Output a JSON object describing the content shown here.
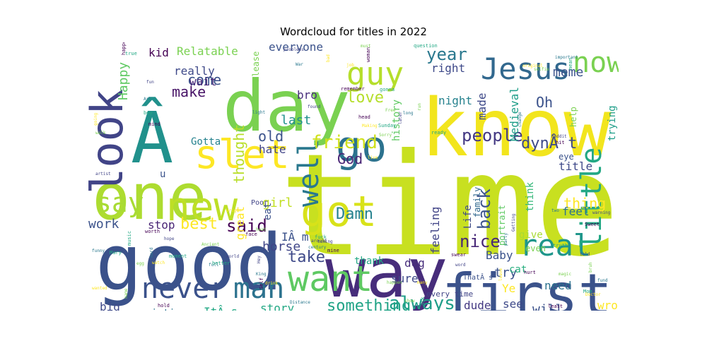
{
  "chart_data": {
    "type": "wordcloud",
    "title": "Wordcloud for titles in 2022",
    "colormap": [
      "#440154",
      "#414487",
      "#2a788e",
      "#22a884",
      "#7ad151",
      "#fde725"
    ],
    "words": [
      {
        "text": "time",
        "color": "#c8e020"
      },
      {
        "text": "know",
        "color": "#f2e51d"
      },
      {
        "text": "good",
        "color": "#3b528b"
      },
      {
        "text": "day",
        "color": "#7ad151"
      },
      {
        "text": "way",
        "color": "#472d7b"
      },
      {
        "text": "Â",
        "color": "#21918c"
      },
      {
        "text": "one",
        "color": "#addc30"
      },
      {
        "text": "first",
        "color": "#3b528b"
      },
      {
        "text": "look",
        "color": "#414487"
      },
      {
        "text": "slet",
        "color": "#fde725"
      },
      {
        "text": "go",
        "color": "#2c728e"
      },
      {
        "text": "got",
        "color": "#d8e219"
      },
      {
        "text": "new",
        "color": "#bddf26"
      },
      {
        "text": "Jesus",
        "color": "#31688e"
      },
      {
        "text": "now",
        "color": "#7ad151"
      },
      {
        "text": "guy",
        "color": "#b5de2b"
      },
      {
        "text": "want",
        "color": "#5ec962"
      },
      {
        "text": "never",
        "color": "#3b528b"
      },
      {
        "text": "man",
        "color": "#2c728e"
      },
      {
        "text": "real",
        "color": "#1f968b"
      },
      {
        "text": "well",
        "color": "#2a788e"
      },
      {
        "text": "little",
        "color": "#23a884"
      },
      {
        "text": "say",
        "color": "#a8db34"
      },
      {
        "text": "love",
        "color": "#b5de2b"
      },
      {
        "text": "friend",
        "color": "#d0e11c"
      },
      {
        "text": "people",
        "color": "#443983"
      },
      {
        "text": "year",
        "color": "#2a788e"
      },
      {
        "text": "dynÂ t",
        "color": "#3e4989"
      },
      {
        "text": "back",
        "color": "#3b528b"
      },
      {
        "text": "God",
        "color": "#482475"
      },
      {
        "text": "said",
        "color": "#440154"
      },
      {
        "text": "best",
        "color": "#fde725"
      },
      {
        "text": "nice",
        "color": "#482878"
      },
      {
        "text": "thing",
        "color": "#fde725"
      },
      {
        "text": "take",
        "color": "#3e4989"
      },
      {
        "text": "always",
        "color": "#1f9e89"
      },
      {
        "text": "something",
        "color": "#20a386"
      },
      {
        "text": "Damn",
        "color": "#26828e"
      },
      {
        "text": "thought",
        "color": "#b8de29"
      },
      {
        "text": "come",
        "color": "#3b528b"
      },
      {
        "text": "make",
        "color": "#481467"
      },
      {
        "text": "Oh",
        "color": "#3b528b"
      },
      {
        "text": "last",
        "color": "#21918c"
      },
      {
        "text": "old",
        "color": "#3b528b"
      },
      {
        "text": "kid",
        "color": "#440154"
      },
      {
        "text": "everyone",
        "color": "#3b528b"
      },
      {
        "text": "Relatable",
        "color": "#7ad151"
      },
      {
        "text": "Happy",
        "color": "#5ec962"
      },
      {
        "text": "really",
        "color": "#3e4989"
      },
      {
        "text": "wait",
        "color": "#482878"
      },
      {
        "text": "bro",
        "color": "#472d7b"
      },
      {
        "text": "hate",
        "color": "#414487"
      },
      {
        "text": "girl",
        "color": "#c2df23"
      },
      {
        "text": "horse",
        "color": "#404688"
      },
      {
        "text": "work",
        "color": "#3b528b"
      },
      {
        "text": "stop",
        "color": "#482475"
      },
      {
        "text": "ItÂ s",
        "color": "#22a884"
      },
      {
        "text": "story",
        "color": "#22a884"
      },
      {
        "text": "painting",
        "color": "#2c728e"
      },
      {
        "text": "big",
        "color": "#3e4989"
      },
      {
        "text": "dude",
        "color": "#443983"
      },
      {
        "text": "see",
        "color": "#3e4989"
      },
      {
        "text": "will",
        "color": "#3b528b"
      },
      {
        "text": "wrong",
        "color": "#fde725"
      },
      {
        "text": "need",
        "color": "#2c728e"
      },
      {
        "text": "feel",
        "color": "#2c728e"
      },
      {
        "text": "meme",
        "color": "#3b528b"
      },
      {
        "text": "right",
        "color": "#3e4989"
      },
      {
        "text": "night",
        "color": "#26828e"
      },
      {
        "text": "made",
        "color": "#3e4989"
      },
      {
        "text": "Medieval",
        "color": "#1f9e89"
      },
      {
        "text": "history",
        "color": "#5ec962"
      },
      {
        "text": "feeling",
        "color": "#414487"
      },
      {
        "text": "Life",
        "color": "#3e4989"
      },
      {
        "text": "family",
        "color": "#31688e"
      },
      {
        "text": "think",
        "color": "#35b779"
      },
      {
        "text": "title",
        "color": "#3e4989"
      },
      {
        "text": "Baby",
        "color": "#3b528b"
      },
      {
        "text": "try",
        "color": "#3b528b"
      },
      {
        "text": "Ye",
        "color": "#fde725"
      },
      {
        "text": "cat",
        "color": "#29af7f"
      },
      {
        "text": "sure",
        "color": "#3e4989"
      },
      {
        "text": "dog",
        "color": "#472d7b"
      },
      {
        "text": "thank",
        "color": "#22a884"
      },
      {
        "text": "IÂ m",
        "color": "#3b528b"
      },
      {
        "text": "eat",
        "color": "#3b528b"
      },
      {
        "text": "Gotta",
        "color": "#26828e"
      },
      {
        "text": "u",
        "color": "#3b528b"
      },
      {
        "text": "great",
        "color": "#fde725"
      },
      {
        "text": "trying",
        "color": "#1f9e89"
      },
      {
        "text": "help",
        "color": "#7ad151"
      },
      {
        "text": "give",
        "color": "#a8db34"
      },
      {
        "text": "even",
        "color": "#7ad151"
      },
      {
        "text": "portrait",
        "color": "#5ec962"
      },
      {
        "text": "every time",
        "color": "#414487"
      },
      {
        "text": "ThatÂ s",
        "color": "#3b528b"
      },
      {
        "text": "Please",
        "color": "#7ad151"
      },
      {
        "text": "eye",
        "color": "#3b528b"
      },
      {
        "text": "Poor",
        "color": "#414487"
      }
    ],
    "small_words": [
      "happened",
      "fun",
      "Art",
      "boy",
      "walk",
      "going",
      "mind",
      "artist",
      "funny",
      "Mary",
      "name",
      "wanted",
      "hold",
      "world",
      "full",
      "music",
      "egg",
      "watch",
      "worth",
      "hope",
      "hard",
      "moment",
      "Ancient",
      "origin",
      "face",
      "Hey",
      "King",
      "better",
      "heat",
      "drink",
      "Self",
      "around",
      "century",
      "fuck",
      "show",
      "leave",
      "hurt",
      "told",
      "fund",
      "Mom",
      "bruh",
      "Science",
      "Sweet",
      "warning",
      "important",
      "mean",
      "selfie",
      "original",
      "hit",
      "Reddit",
      "change",
      "ready",
      "Sorry",
      "Making",
      "head",
      "later",
      "long",
      "Sunday",
      "Free",
      "job",
      "woman",
      "problems",
      "War",
      "question",
      "must",
      "bad",
      "remember",
      "found",
      "light",
      "gonna",
      "run",
      "live",
      "mine",
      "taking",
      "Distance",
      "ask",
      "happen",
      "many",
      "swear",
      "word",
      "party",
      "truth",
      "magic",
      "Doctor",
      "least",
      "Getting",
      "two",
      "true"
    ]
  }
}
